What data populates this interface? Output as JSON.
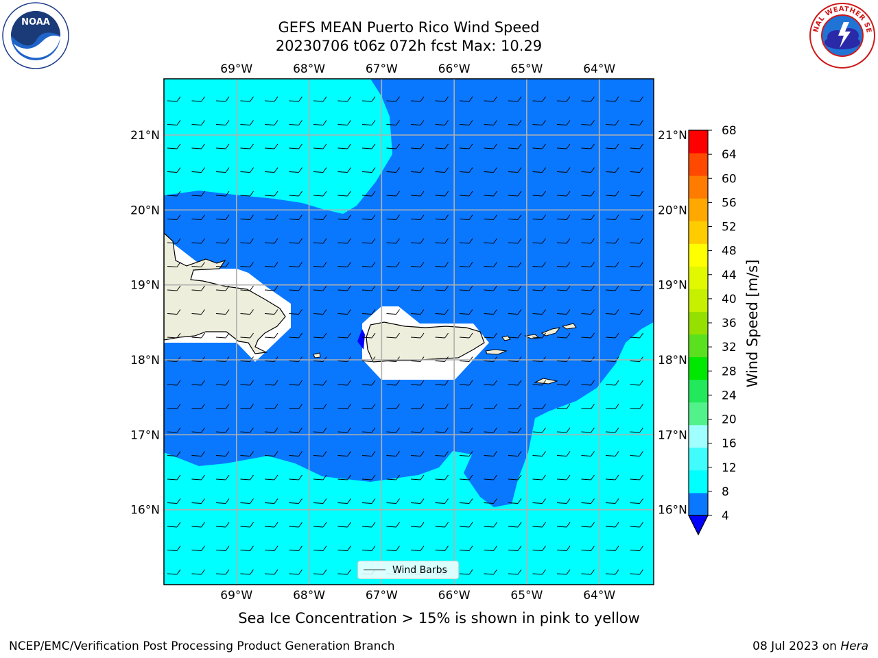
{
  "title": {
    "line1": "GEFS MEAN Puerto Rico Wind Speed",
    "line2": "20230706 t06z 072h fcst   Max: 10.29"
  },
  "map": {
    "lon_range": [
      -70.0,
      -63.25
    ],
    "lat_range": [
      15.0,
      21.75
    ],
    "lon_ticks": [
      "69°W",
      "68°W",
      "67°W",
      "66°W",
      "65°W",
      "64°W"
    ],
    "lat_ticks": [
      "16°N",
      "17°N",
      "18°N",
      "19°N",
      "20°N",
      "21°N"
    ],
    "wind_barb_direction": "from east",
    "colors": {
      "speed_4_8": "#0a77ff",
      "speed_8_12": "#00ffff",
      "land": "#eeeedc",
      "masked": "#ffffff",
      "below_4": "#0000ff"
    }
  },
  "legend": {
    "label": "Wind Barbs"
  },
  "colorbar": {
    "label": "Wind Speed [m/s]",
    "ticks": [
      "4",
      "8",
      "12",
      "16",
      "20",
      "24",
      "28",
      "32",
      "36",
      "40",
      "44",
      "48",
      "52",
      "56",
      "60",
      "64",
      "68"
    ],
    "colors": [
      "#0a77ff",
      "#00ffff",
      "#40fcfc",
      "#a0ffff",
      "#52f28a",
      "#22e85c",
      "#00e800",
      "#5ae01e",
      "#96e000",
      "#c6f000",
      "#e2f800",
      "#ffff00",
      "#ffcc00",
      "#ffa800",
      "#ff7c00",
      "#ff4800",
      "#ff0000"
    ],
    "extend_below_color": "#0000ff"
  },
  "footer": {
    "note": "Sea Ice Concentration > 15% is shown in pink to yellow",
    "left": "NCEP/EMC/Verification Post Processing Product Generation Branch",
    "date": "08 Jul 2023 on ",
    "system": "Hera"
  },
  "logos": {
    "left": "noaa-logo",
    "right": "nws-logo"
  }
}
